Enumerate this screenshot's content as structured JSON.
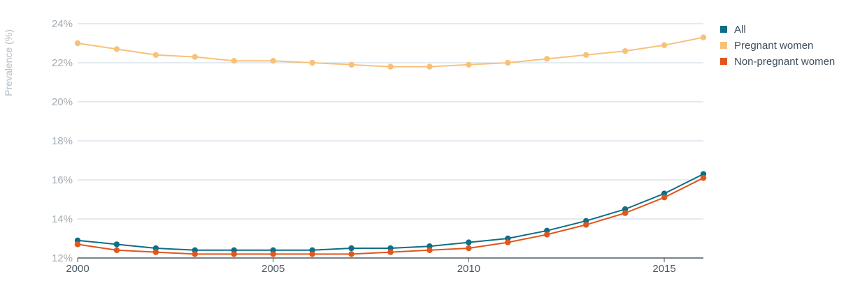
{
  "chart_data": {
    "type": "line",
    "title": "",
    "xlabel": "",
    "ylabel": "Prevalence (%)",
    "x": [
      2000,
      2001,
      2002,
      2003,
      2004,
      2005,
      2006,
      2007,
      2008,
      2009,
      2010,
      2011,
      2012,
      2013,
      2014,
      2015,
      2016
    ],
    "xlim": [
      2000,
      2016
    ],
    "ylim": [
      12,
      24
    ],
    "x_ticks": [
      2000,
      2005,
      2010,
      2015
    ],
    "x_tick_labels": [
      "2000",
      "2005",
      "2010",
      "2015"
    ],
    "y_ticks": [
      12,
      14,
      16,
      18,
      20,
      22,
      24
    ],
    "y_tick_labels": [
      "12%",
      "14%",
      "16%",
      "18%",
      "20%",
      "22%",
      "24%"
    ],
    "grid": "horizontal",
    "legend_position": "top-right",
    "series": [
      {
        "name": "All",
        "color": "#0e6e85",
        "values": [
          12.9,
          12.7,
          12.5,
          12.4,
          12.4,
          12.4,
          12.4,
          12.5,
          12.5,
          12.6,
          12.8,
          13.0,
          13.4,
          13.9,
          14.5,
          15.3,
          16.3
        ]
      },
      {
        "name": "Pregnant women",
        "color": "#f8c17a",
        "values": [
          23.0,
          22.7,
          22.4,
          22.3,
          22.1,
          22.1,
          22.0,
          21.9,
          21.8,
          21.8,
          21.9,
          22.0,
          22.2,
          22.4,
          22.6,
          22.9,
          23.3
        ]
      },
      {
        "name": "Non-pregnant women",
        "color": "#e1561c",
        "values": [
          12.7,
          12.4,
          12.3,
          12.2,
          12.2,
          12.2,
          12.2,
          12.2,
          12.3,
          12.4,
          12.5,
          12.8,
          13.2,
          13.7,
          14.3,
          15.1,
          16.1
        ]
      }
    ]
  },
  "colors": {
    "grid": "#c8d6e0",
    "axis": "#4a5a66",
    "tick_text": "#a2acb4",
    "legend_text": "#3f4e5c",
    "ylabel_text": "#b3bcc4"
  }
}
